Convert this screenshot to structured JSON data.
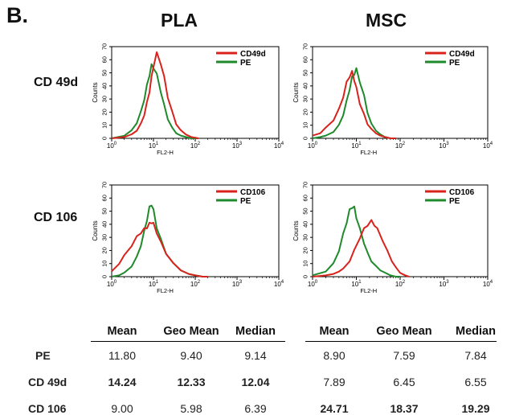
{
  "figure": {
    "panel_label": "B.",
    "columns": [
      "PLA",
      "MSC"
    ],
    "rows": [
      "CD 49d",
      "CD 106"
    ]
  },
  "colors": {
    "marker": "#d8231c",
    "control": "#1f8a2b"
  },
  "chart_data": [
    {
      "type": "line",
      "id": "pla_cd49d",
      "xlabel": "FL2-H",
      "ylabel": "Counts",
      "xscale": "log",
      "xlim": [
        1,
        10000
      ],
      "ylim": [
        0,
        70
      ],
      "xticks": [
        "10^0",
        "10^1",
        "10^2",
        "10^3",
        "10^4"
      ],
      "yticks": [
        "0",
        "10",
        "20",
        "30",
        "40",
        "50",
        "60",
        "70"
      ],
      "legend": "top-right",
      "series": [
        {
          "name": "CD49d",
          "color": "#d8231c",
          "x": [
            1,
            2,
            3,
            4,
            5,
            6,
            7,
            8,
            9,
            10,
            12,
            15,
            18,
            22,
            28,
            35,
            45,
            60,
            80,
            120
          ],
          "y": [
            0,
            1,
            3,
            6,
            11,
            18,
            27,
            36,
            46,
            56,
            64,
            58,
            46,
            32,
            20,
            11,
            6,
            3,
            1,
            0
          ]
        },
        {
          "name": "PE",
          "color": "#1f8a2b",
          "x": [
            1,
            2,
            3,
            4,
            5,
            6,
            7,
            8,
            9,
            10,
            12,
            15,
            18,
            22,
            28,
            35,
            45,
            60,
            80,
            120
          ],
          "y": [
            0,
            2,
            6,
            12,
            20,
            30,
            40,
            49,
            55,
            55,
            48,
            36,
            25,
            15,
            8,
            4,
            2,
            1,
            0,
            0
          ]
        }
      ]
    },
    {
      "type": "line",
      "id": "msc_cd49d",
      "xlabel": "FL2-H",
      "ylabel": "Counts",
      "xscale": "log",
      "xlim": [
        1,
        10000
      ],
      "ylim": [
        0,
        70
      ],
      "xticks": [
        "10^0",
        "10^1",
        "10^2",
        "10^3",
        "10^4"
      ],
      "yticks": [
        "0",
        "10",
        "20",
        "30",
        "40",
        "50",
        "60",
        "70"
      ],
      "legend": "top-right",
      "series": [
        {
          "name": "CD49d",
          "color": "#d8231c",
          "x": [
            1,
            1.5,
            2,
            3,
            4,
            5,
            6,
            7,
            8,
            9,
            10,
            12,
            15,
            18,
            22,
            28,
            35,
            45,
            60,
            80
          ],
          "y": [
            2,
            4,
            8,
            14,
            22,
            32,
            42,
            48,
            50,
            45,
            38,
            27,
            18,
            11,
            7,
            4,
            2,
            1,
            0,
            0
          ]
        },
        {
          "name": "PE",
          "color": "#1f8a2b",
          "x": [
            1,
            1.5,
            2,
            3,
            4,
            5,
            6,
            7,
            8,
            9,
            10,
            12,
            15,
            18,
            22,
            28,
            35,
            45,
            60,
            80
          ],
          "y": [
            0,
            1,
            2,
            5,
            10,
            18,
            28,
            38,
            46,
            50,
            52,
            44,
            32,
            20,
            11,
            6,
            3,
            1,
            0,
            0
          ]
        }
      ]
    },
    {
      "type": "line",
      "id": "pla_cd106",
      "xlabel": "FL2-H",
      "ylabel": "Counts",
      "xscale": "log",
      "xlim": [
        1,
        10000
      ],
      "ylim": [
        0,
        70
      ],
      "xticks": [
        "10^0",
        "10^1",
        "10^2",
        "10^3",
        "10^4"
      ],
      "yticks": [
        "0",
        "10",
        "20",
        "30",
        "40",
        "50",
        "60",
        "70"
      ],
      "legend": "top-right",
      "series": [
        {
          "name": "CD106",
          "color": "#d8231c",
          "x": [
            1,
            1.5,
            2,
            3,
            4,
            5,
            6,
            7,
            8,
            9,
            10,
            12,
            15,
            20,
            30,
            45,
            70,
            100,
            150,
            200
          ],
          "y": [
            4,
            10,
            16,
            24,
            30,
            34,
            36,
            38,
            40,
            42,
            40,
            34,
            26,
            18,
            10,
            5,
            2,
            1,
            0,
            0
          ]
        },
        {
          "name": "PE",
          "color": "#1f8a2b",
          "x": [
            1,
            1.5,
            2,
            3,
            4,
            5,
            6,
            7,
            8,
            9,
            10,
            12,
            15,
            20,
            30,
            45,
            70,
            100,
            150,
            200
          ],
          "y": [
            0,
            1,
            3,
            8,
            15,
            24,
            34,
            44,
            52,
            56,
            50,
            38,
            28,
            18,
            10,
            5,
            2,
            1,
            0,
            0
          ]
        }
      ]
    },
    {
      "type": "line",
      "id": "msc_cd106",
      "xlabel": "FL2-H",
      "ylabel": "Counts",
      "xscale": "log",
      "xlim": [
        1,
        10000
      ],
      "ylim": [
        0,
        70
      ],
      "xticks": [
        "10^0",
        "10^1",
        "10^2",
        "10^3",
        "10^4"
      ],
      "yticks": [
        "0",
        "10",
        "20",
        "30",
        "40",
        "50",
        "60",
        "70"
      ],
      "legend": "top-right",
      "series": [
        {
          "name": "CD106",
          "color": "#d8231c",
          "x": [
            1,
            2,
            3,
            4,
            5,
            7,
            9,
            12,
            15,
            18,
            22,
            26,
            30,
            40,
            50,
            65,
            80,
            100,
            130,
            160
          ],
          "y": [
            0,
            1,
            2,
            4,
            6,
            12,
            20,
            30,
            36,
            40,
            42,
            40,
            36,
            28,
            20,
            12,
            7,
            3,
            1,
            0
          ]
        },
        {
          "name": "PE",
          "color": "#1f8a2b",
          "x": [
            1,
            2,
            3,
            4,
            5,
            6,
            7,
            8,
            9,
            10,
            12,
            15,
            18,
            22,
            28,
            35,
            45,
            60,
            80,
            100
          ],
          "y": [
            1,
            4,
            10,
            20,
            32,
            42,
            50,
            54,
            52,
            46,
            36,
            26,
            18,
            12,
            8,
            5,
            3,
            1,
            0,
            0
          ]
        }
      ]
    },
    {
      "type": "table",
      "id": "stats",
      "groups": [
        "PLA",
        "MSC"
      ],
      "columns": [
        "Mean",
        "Geo Mean",
        "Median",
        "Mean",
        "Geo Mean",
        "Median"
      ],
      "rows": [
        {
          "label": "PE",
          "values": [
            "11.80",
            "9.40",
            "9.14",
            "8.90",
            "7.59",
            "7.84"
          ],
          "bold": [
            false,
            false,
            false,
            false,
            false,
            false
          ]
        },
        {
          "label": "CD 49d",
          "values": [
            "14.24",
            "12.33",
            "12.04",
            "7.89",
            "6.45",
            "6.55"
          ],
          "bold": [
            true,
            true,
            true,
            false,
            false,
            false
          ]
        },
        {
          "label": "CD 106",
          "values": [
            "9.00",
            "5.98",
            "6.39",
            "24.71",
            "18.37",
            "19.29"
          ],
          "bold": [
            false,
            false,
            false,
            true,
            true,
            true
          ]
        }
      ]
    }
  ]
}
